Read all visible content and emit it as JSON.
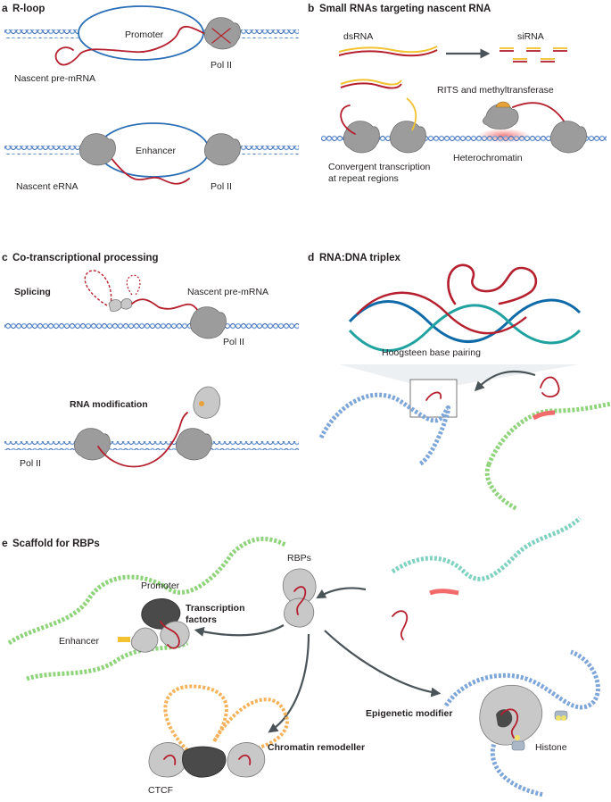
{
  "panels": {
    "a": {
      "letter": "a",
      "title": "R-loop",
      "labels": {
        "promoter": "Promoter",
        "pol2_top": "Pol II",
        "nascent_pre_mrna": "Nascent pre-mRNA",
        "enhancer": "Enhancer",
        "nascent_erna": "Nascent eRNA",
        "pol2_bottom": "Pol II"
      }
    },
    "b": {
      "letter": "b",
      "title": "Small RNAs targeting nascent RNA",
      "labels": {
        "dsrna": "dsRNA",
        "sirna": "siRNA",
        "rits": "RITS and methyltransferase",
        "heterochromatin": "Heterochromatin",
        "convergent_1": "Convergent transcription",
        "convergent_2": "at repeat regions"
      }
    },
    "c": {
      "letter": "c",
      "title": "Co-transcriptional processing",
      "labels": {
        "splicing": "Splicing",
        "nascent_pre_mrna": "Nascent pre-mRNA",
        "pol2_top": "Pol II",
        "rna_modification": "RNA modification",
        "pol2_bottom": "Pol II"
      }
    },
    "d": {
      "letter": "d",
      "title": "RNA:DNA triplex",
      "labels": {
        "hoogsteen": "Hoogsteen base pairing"
      }
    },
    "e": {
      "letter": "e",
      "title": "Scaffold for RBPs",
      "labels": {
        "promoter": "Promoter",
        "transcription_factors_1": "Transcription",
        "transcription_factors_2": "factors",
        "enhancer": "Enhancer",
        "rbps": "RBPs",
        "epigenetic_modifier": "Epigenetic modifier",
        "histone": "Histone",
        "chromatin_remodeller": "Chromatin remodeller",
        "ctcf": "CTCF"
      }
    }
  },
  "colors": {
    "dna_blue": "#7ea6d8",
    "dna_green": "#8fd47a",
    "dna_orange": "#f5b25a",
    "rna_red": "#b51f2e",
    "protein_grey": "#9c9c9c",
    "arrow_grey": "#4a5357",
    "sirna_yellow": "#f2c230",
    "heterochromatin_glow": "#f26b6b"
  }
}
